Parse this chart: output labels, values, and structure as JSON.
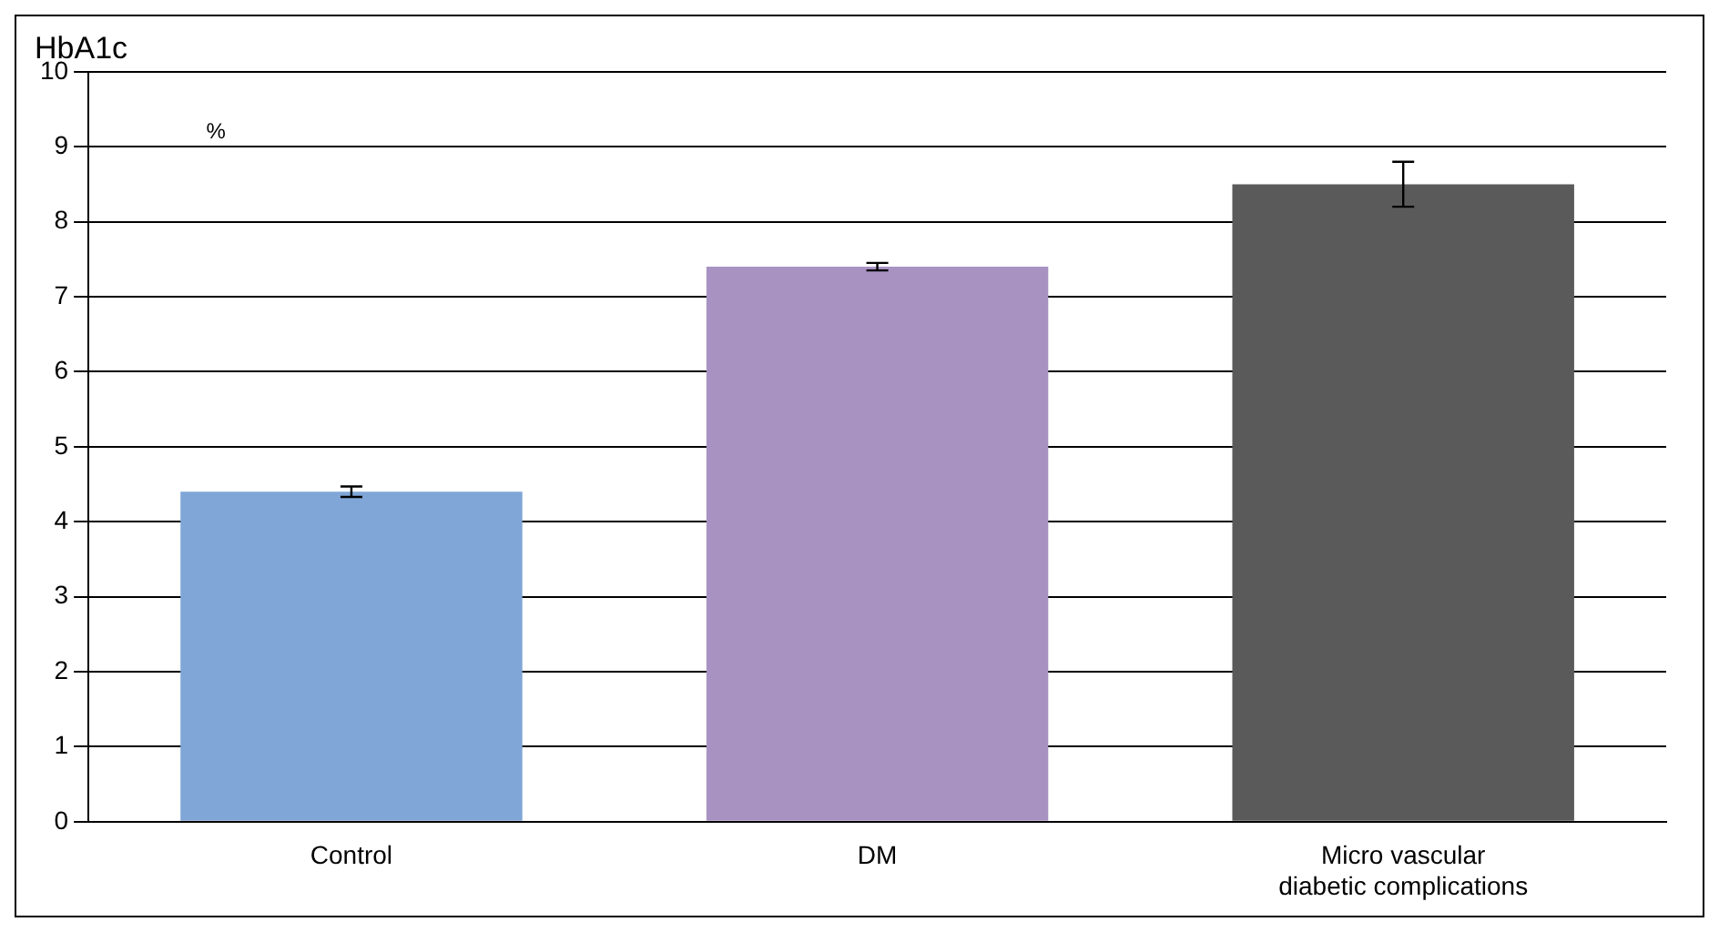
{
  "chart_data": {
    "type": "bar",
    "title": "HbA1c",
    "categories": [
      "Control",
      "DM",
      "Micro vascular diabetic complications"
    ],
    "values": [
      4.4,
      7.4,
      8.5
    ],
    "colors": [
      "#7fa6d6",
      "#a892c2",
      "#5a5a5a"
    ],
    "errors": [
      0.07,
      0.05,
      0.3
    ],
    "ylim": [
      0,
      10
    ],
    "yticks": [
      0,
      1,
      2,
      3,
      4,
      5,
      6,
      7,
      8,
      9,
      10
    ],
    "grid": "y",
    "annotations": [
      "%"
    ]
  }
}
